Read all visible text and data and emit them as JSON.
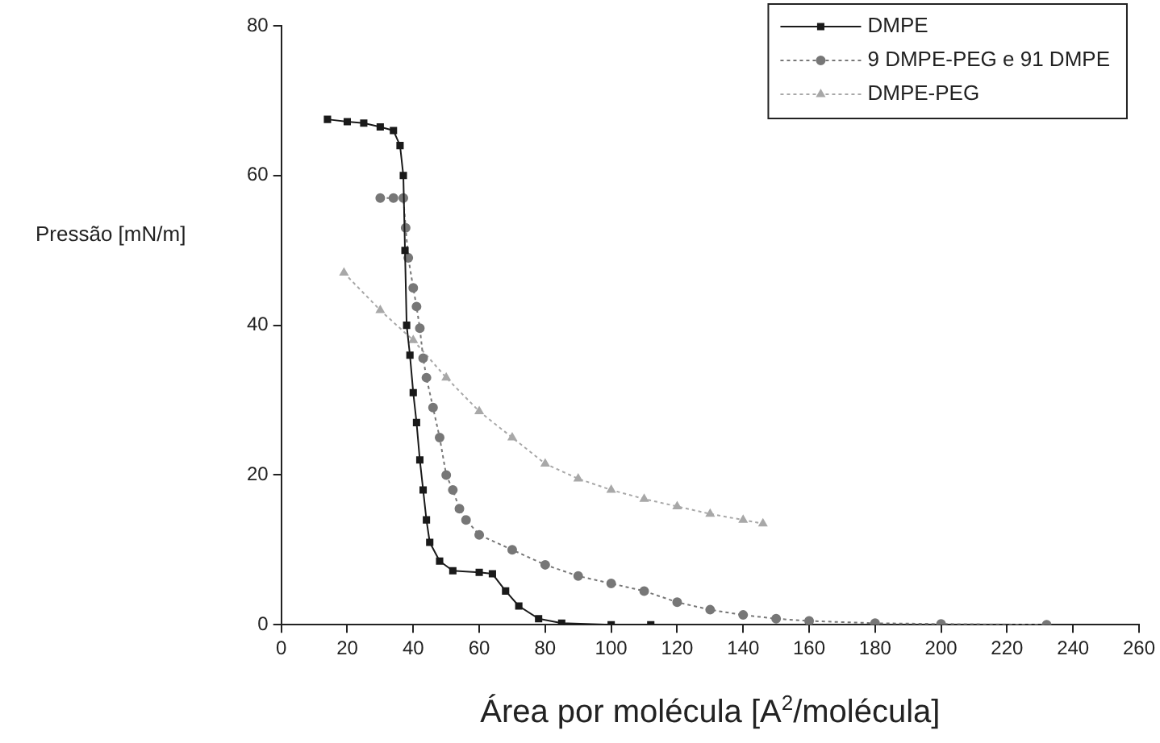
{
  "chart_data": {
    "type": "line",
    "xlabel": "Área por molécula [A$^{2}$/molécula]",
    "ylabel": "Pressão [mN/m]",
    "xlim": [
      0,
      260
    ],
    "xticks": [
      0,
      20,
      40,
      60,
      80,
      100,
      120,
      140,
      160,
      180,
      200,
      220,
      240,
      260
    ],
    "ylim": [
      0,
      80
    ],
    "yticks": [
      0,
      20,
      40,
      60,
      80
    ],
    "grid": false,
    "legend": "top right",
    "series": [
      {
        "name": "DMPE",
        "color": "#1a1a1a",
        "marker": "square",
        "line_style": "solid",
        "x": [
          14,
          20,
          25,
          30,
          34,
          36,
          37,
          37.5,
          38,
          39,
          40,
          41,
          42,
          43,
          44,
          45,
          48,
          52,
          60,
          64,
          68,
          72,
          78,
          85,
          100,
          112
        ],
        "values": [
          67.5,
          67.2,
          67,
          66.5,
          66,
          64,
          60,
          50,
          40,
          36,
          31,
          27,
          22,
          18,
          14,
          11,
          8.5,
          7.2,
          7,
          6.8,
          4.5,
          2.5,
          0.8,
          0.2,
          0,
          0
        ]
      },
      {
        "name": "9 DMPE-PEG e 91 DMPE",
        "color": "#777777",
        "marker": "circle",
        "line_style": "dotted",
        "x": [
          30,
          34,
          37,
          37.7,
          38.5,
          40,
          41,
          42,
          43,
          44,
          46,
          48,
          50,
          52,
          54,
          56,
          60,
          70,
          80,
          90,
          100,
          110,
          120,
          130,
          140,
          150,
          160,
          180,
          200,
          232
        ],
        "values": [
          57,
          57,
          57,
          53,
          49,
          45,
          42.5,
          39.6,
          35.6,
          33,
          29,
          25,
          20,
          18,
          15.5,
          14,
          12,
          10,
          8,
          6.5,
          5.5,
          4.5,
          3,
          2,
          1.3,
          0.8,
          0.5,
          0.2,
          0.1,
          0
        ]
      },
      {
        "name": "DMPE-PEG",
        "color": "#a8a8a8",
        "marker": "triangle",
        "line_style": "dotted",
        "x": [
          19,
          30,
          40,
          50,
          60,
          70,
          80,
          90,
          100,
          110,
          120,
          130,
          140,
          146
        ],
        "values": [
          47,
          42,
          38,
          33,
          28.5,
          25,
          21.5,
          19.5,
          18,
          16.8,
          15.8,
          14.8,
          14,
          13.5
        ]
      }
    ]
  }
}
